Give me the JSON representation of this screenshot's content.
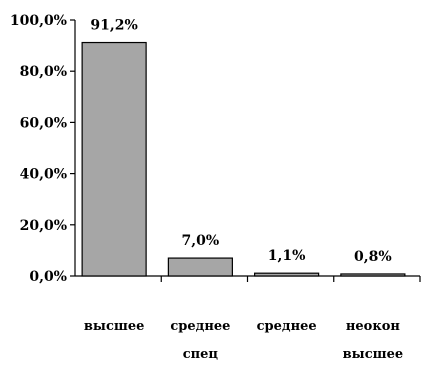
{
  "chart_data": {
    "type": "bar",
    "categories": [
      [
        "высшее"
      ],
      [
        "среднее",
        "спец"
      ],
      [
        "среднее"
      ],
      [
        "неокон",
        "высшее"
      ]
    ],
    "values": [
      91.2,
      7.0,
      1.1,
      0.8
    ],
    "value_labels": [
      "91,2%",
      "7,0%",
      "1,1%",
      "0,8%"
    ],
    "y_ticks": [
      0,
      20,
      40,
      60,
      80,
      100
    ],
    "y_tick_labels": [
      "0,0%",
      "20,0%",
      "40,0%",
      "60,0%",
      "80,0%",
      "100,0%"
    ],
    "ylim": [
      0,
      100
    ],
    "title": "",
    "xlabel": "",
    "ylabel": "",
    "grid": false,
    "legend": "none",
    "colors": {
      "bar_fill": "#a6a6a6",
      "bar_stroke": "#000000",
      "axis": "#000000"
    }
  }
}
